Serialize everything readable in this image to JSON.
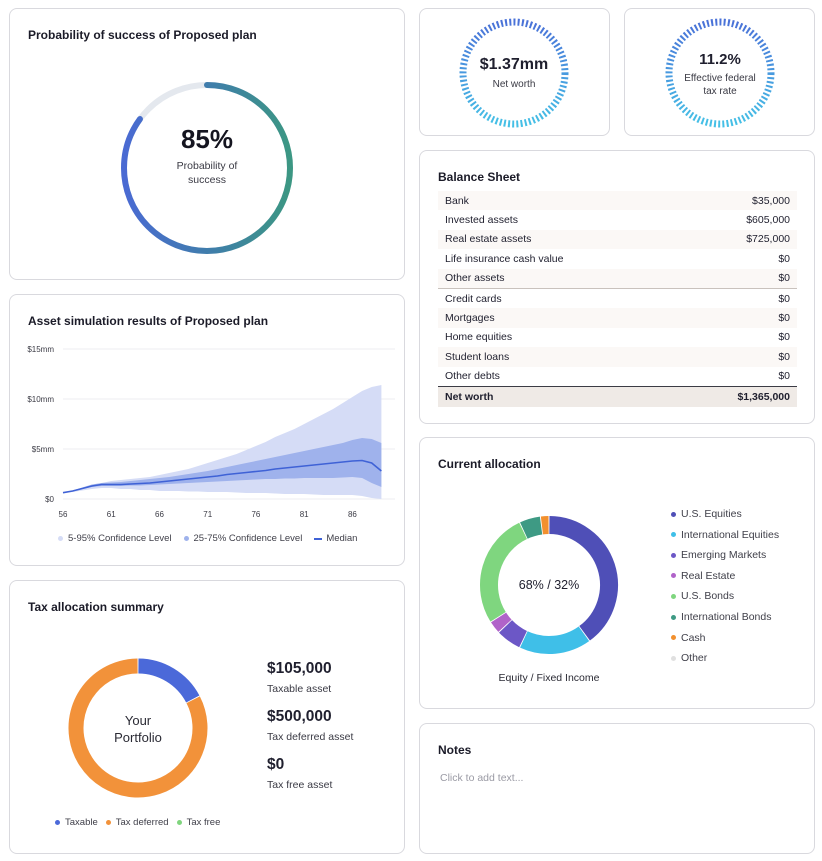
{
  "success": {
    "title": "Probability of success of Proposed plan",
    "value": "85%",
    "caption_line1": "Probability of",
    "caption_line2": "success",
    "probability": 0.85
  },
  "stats": {
    "net_worth": {
      "value": "$1.37mm",
      "label": "Net worth"
    },
    "tax_rate": {
      "value": "11.2%",
      "label_line1": "Effective federal",
      "label_line2": "tax rate"
    }
  },
  "balance_sheet": {
    "title": "Balance Sheet",
    "rows": [
      {
        "label": "Bank",
        "value": "$35,000"
      },
      {
        "label": "Invested assets",
        "value": "$605,000"
      },
      {
        "label": "Real estate assets",
        "value": "$725,000"
      },
      {
        "label": "Life insurance cash value",
        "value": "$0"
      },
      {
        "label": "Other assets",
        "value": "$0"
      },
      {
        "label": "Credit cards",
        "value": "$0"
      },
      {
        "label": "Mortgages",
        "value": "$0"
      },
      {
        "label": "Home equities",
        "value": "$0"
      },
      {
        "label": "Student loans",
        "value": "$0"
      },
      {
        "label": "Other debts",
        "value": "$0"
      }
    ],
    "total": {
      "label": "Net worth",
      "value": "$1,365,000"
    }
  },
  "simulation": {
    "title": "Asset simulation results of Proposed plan",
    "legend": {
      "band_outer": "5-95% Confidence Level",
      "band_inner": "25-75% Confidence Level",
      "median": "Median"
    },
    "colors": {
      "outer": "#d5dcf6",
      "inner": "#9fb2ec",
      "median": "#3f62d6"
    }
  },
  "chart_data": {
    "type": "area",
    "x": [
      56,
      57,
      58,
      59,
      60,
      61,
      62,
      63,
      64,
      65,
      66,
      67,
      68,
      69,
      70,
      71,
      72,
      73,
      74,
      75,
      76,
      77,
      78,
      79,
      80,
      81,
      82,
      83,
      84,
      85,
      86,
      87,
      88,
      89
    ],
    "x_ticks": [
      "56",
      "61",
      "66",
      "71",
      "76",
      "81",
      "86"
    ],
    "y_ticks": [
      "$0",
      "$5mm",
      "$10mm",
      "$15mm"
    ],
    "y_tick_values": [
      0,
      5,
      10,
      15
    ],
    "ylim": [
      0,
      15
    ],
    "xlim": [
      56,
      90
    ],
    "series": [
      {
        "name": "5-95% Confidence Level",
        "lower": [
          0.6,
          0.7,
          0.85,
          1.0,
          1.1,
          1.1,
          1.0,
          1.0,
          0.9,
          0.9,
          0.8,
          0.8,
          0.8,
          0.75,
          0.75,
          0.7,
          0.7,
          0.7,
          0.65,
          0.6,
          0.6,
          0.6,
          0.55,
          0.5,
          0.5,
          0.5,
          0.45,
          0.4,
          0.4,
          0.4,
          0.4,
          0.3,
          0.1,
          0.0
        ],
        "upper": [
          0.65,
          0.8,
          1.1,
          1.4,
          1.6,
          1.8,
          1.9,
          2.0,
          2.1,
          2.2,
          2.4,
          2.6,
          2.8,
          3.0,
          3.3,
          3.6,
          3.9,
          4.2,
          4.5,
          4.9,
          5.3,
          5.7,
          6.2,
          6.6,
          7.0,
          7.5,
          8.0,
          8.5,
          9.0,
          9.6,
          10.2,
          10.8,
          11.2,
          11.4
        ]
      },
      {
        "name": "25-75% Confidence Level",
        "lower": [
          0.62,
          0.78,
          1.0,
          1.2,
          1.3,
          1.3,
          1.3,
          1.35,
          1.35,
          1.4,
          1.45,
          1.5,
          1.55,
          1.6,
          1.65,
          1.7,
          1.75,
          1.8,
          1.85,
          1.9,
          1.95,
          2.0,
          2.0,
          2.05,
          2.05,
          2.1,
          2.1,
          2.1,
          2.1,
          2.15,
          2.2,
          2.1,
          1.6,
          1.2
        ],
        "upper": [
          0.64,
          0.85,
          1.15,
          1.45,
          1.6,
          1.65,
          1.7,
          1.8,
          1.9,
          2.0,
          2.1,
          2.2,
          2.35,
          2.5,
          2.65,
          2.8,
          3.0,
          3.2,
          3.4,
          3.6,
          3.8,
          4.0,
          4.2,
          4.4,
          4.6,
          4.8,
          5.0,
          5.2,
          5.4,
          5.6,
          5.9,
          6.1,
          6.0,
          5.6
        ]
      },
      {
        "name": "Median",
        "values": [
          0.63,
          0.8,
          1.05,
          1.3,
          1.45,
          1.45,
          1.45,
          1.5,
          1.55,
          1.6,
          1.7,
          1.8,
          1.9,
          2.0,
          2.1,
          2.2,
          2.3,
          2.45,
          2.55,
          2.65,
          2.75,
          2.85,
          3.0,
          3.1,
          3.2,
          3.3,
          3.4,
          3.5,
          3.6,
          3.7,
          3.8,
          3.85,
          3.6,
          2.8
        ]
      }
    ]
  },
  "allocation": {
    "title": "Current allocation",
    "center_label": "68% / 32%",
    "caption": "Equity / Fixed Income",
    "segments": [
      {
        "name": "U.S. Equities",
        "value": 40,
        "color": "#4f4fb7"
      },
      {
        "name": "International Equities",
        "value": 17,
        "color": "#3fbfe8"
      },
      {
        "name": "Emerging Markets",
        "value": 6,
        "color": "#6c57c6"
      },
      {
        "name": "Real Estate",
        "value": 3,
        "color": "#b063c9"
      },
      {
        "name": "U.S. Bonds",
        "value": 27,
        "color": "#7fd67f"
      },
      {
        "name": "International Bonds",
        "value": 5,
        "color": "#3e9a84"
      },
      {
        "name": "Cash",
        "value": 2,
        "color": "#f2902e"
      },
      {
        "name": "Other",
        "value": 0,
        "color": "#e0e0e0"
      }
    ]
  },
  "tax": {
    "title": "Tax allocation summary",
    "center_line1": "Your",
    "center_line2": "Portfolio",
    "items": [
      {
        "amount": "$105,000",
        "label": "Taxable asset",
        "legend": "Taxable",
        "value": 105000,
        "color": "#4b69d9"
      },
      {
        "amount": "$500,000",
        "label": "Tax deferred asset",
        "legend": "Tax deferred",
        "value": 500000,
        "color": "#f2923a"
      },
      {
        "amount": "$0",
        "label": "Tax free asset",
        "legend": "Tax free",
        "value": 0,
        "color": "#80d57e"
      }
    ]
  },
  "notes": {
    "title": "Notes",
    "placeholder": "Click to add text..."
  }
}
